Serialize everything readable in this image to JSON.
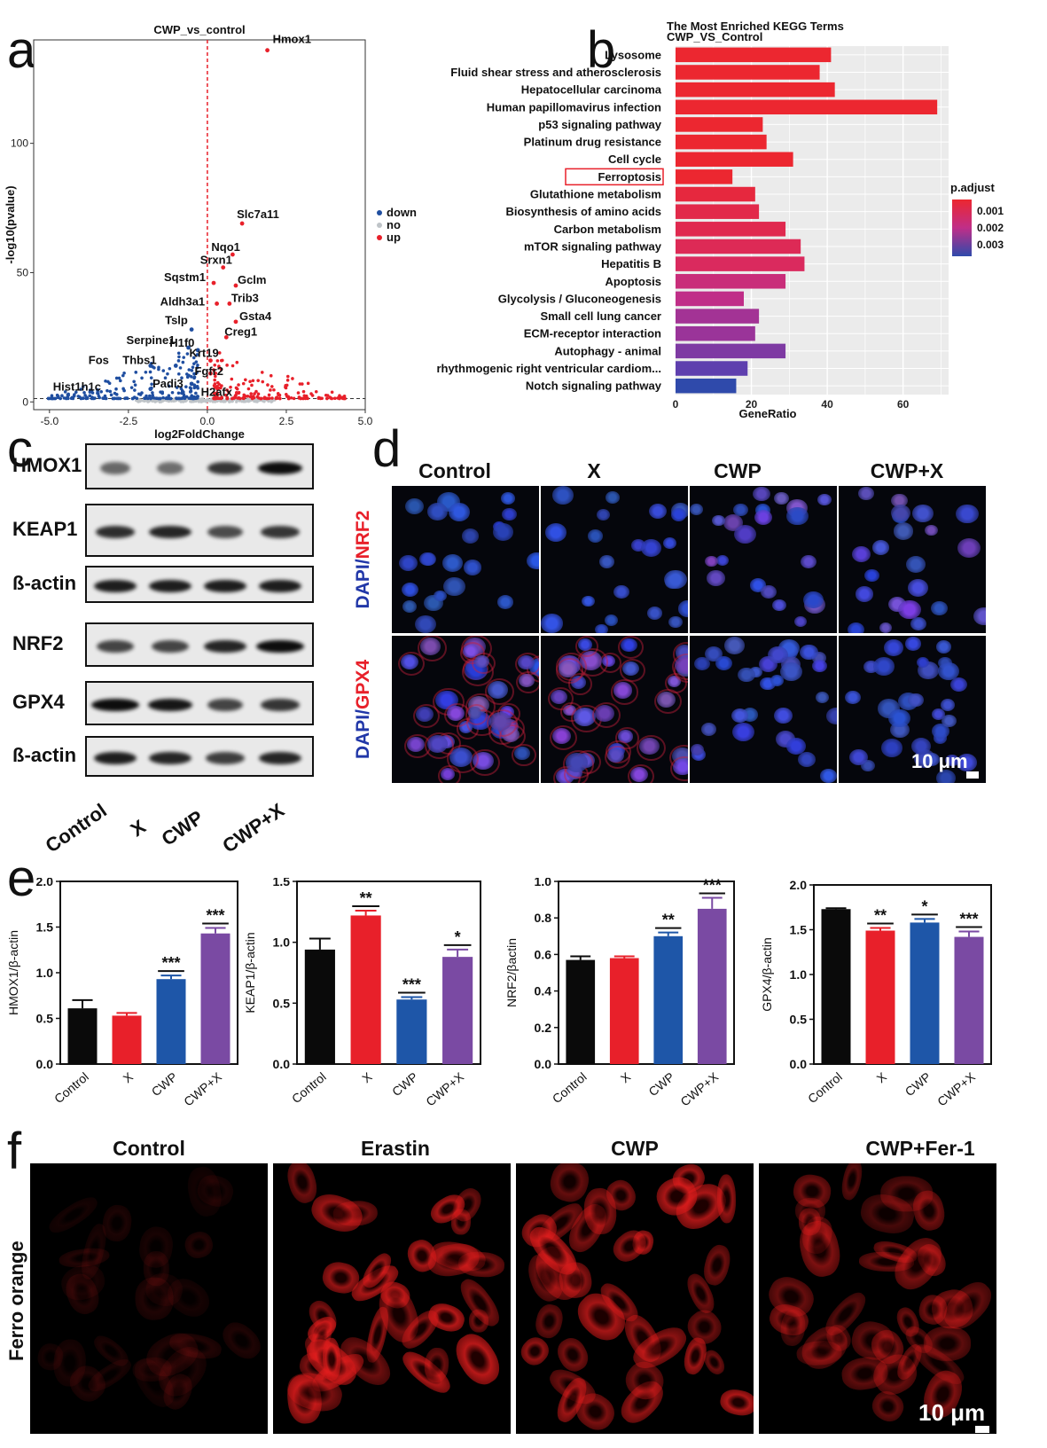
{
  "panels": {
    "a": "a",
    "b": "b",
    "c": "c",
    "d": "d",
    "e": "e",
    "f": "f"
  },
  "volcano": {
    "title": "CWP_vs_control",
    "xlabel": "log2FoldChange",
    "ylabel": "-log10(pvalue)",
    "xticks": [
      "-5.0",
      "-2.5",
      "0.0",
      "2.5",
      "5.0"
    ],
    "yticks": [
      "0",
      "50",
      "100"
    ],
    "legend": [
      "down",
      "no",
      "up"
    ],
    "genes": [
      {
        "name": "Hmox1",
        "x": 1.9,
        "y": 136
      },
      {
        "name": "Slc7a11",
        "x": 1.1,
        "y": 69
      },
      {
        "name": "Nqo1",
        "x": 0.8,
        "y": 57
      },
      {
        "name": "Srxn1",
        "x": 0.5,
        "y": 52
      },
      {
        "name": "Gclm",
        "x": 0.9,
        "y": 45
      },
      {
        "name": "Sqstm1",
        "x": 0.2,
        "y": 46
      },
      {
        "name": "Trib3",
        "x": 0.7,
        "y": 38
      },
      {
        "name": "Aldh3a1",
        "x": 0.3,
        "y": 38
      },
      {
        "name": "Gsta4",
        "x": 0.9,
        "y": 31
      },
      {
        "name": "Tslp",
        "x": -0.5,
        "y": 28
      },
      {
        "name": "Creg1",
        "x": 0.6,
        "y": 25
      },
      {
        "name": "Serpine1",
        "x": -0.6,
        "y": 21
      },
      {
        "name": "H1f0",
        "x": -0.3,
        "y": 20
      },
      {
        "name": "Krt19",
        "x": 0.1,
        "y": 16
      },
      {
        "name": "Fos",
        "x": -1.8,
        "y": 14
      },
      {
        "name": "Thbs1",
        "x": -1.0,
        "y": 14
      },
      {
        "name": "Fgfr2",
        "x": 0.1,
        "y": 11
      },
      {
        "name": "Padi3",
        "x": -0.5,
        "y": 7
      },
      {
        "name": "Hist1h1c",
        "x": -1.8,
        "y": 5
      },
      {
        "name": "H2afx",
        "x": 0.3,
        "y": 3
      }
    ]
  },
  "kegg": {
    "title": "The Most Enriched KEGG Terms",
    "subtitle": "CWP_VS_Control",
    "xlabel": "GeneRatio",
    "xticks": [
      "0",
      "20",
      "40",
      "60"
    ],
    "legend_title": "p.adjust",
    "legend_ticks": [
      "0.001",
      "0.002",
      "0.003"
    ],
    "highlight": "Ferroptosis",
    "terms": [
      {
        "name": "Lysosome",
        "value": 41,
        "color": "#ec2730"
      },
      {
        "name": "Fluid shear stress and atherosclerosis",
        "value": 38,
        "color": "#ec2730"
      },
      {
        "name": "Hepatocellular carcinoma",
        "value": 42,
        "color": "#ec2730"
      },
      {
        "name": "Human papillomavirus infection",
        "value": 69,
        "color": "#ec2730"
      },
      {
        "name": "p53 signaling pathway",
        "value": 23,
        "color": "#ec2730"
      },
      {
        "name": "Platinum drug resistance",
        "value": 24,
        "color": "#ec2730"
      },
      {
        "name": "Cell cycle",
        "value": 31,
        "color": "#ec2730"
      },
      {
        "name": "Ferroptosis",
        "value": 15,
        "color": "#ec2730"
      },
      {
        "name": "Glutathione metabolism",
        "value": 21,
        "color": "#e6283e"
      },
      {
        "name": "Biosynthesis of amino acids",
        "value": 22,
        "color": "#e2294a"
      },
      {
        "name": "Carbon metabolism",
        "value": 29,
        "color": "#e0294f"
      },
      {
        "name": "mTOR signaling pathway",
        "value": 33,
        "color": "#dd2a56"
      },
      {
        "name": "Hepatitis B",
        "value": 34,
        "color": "#da2a5e"
      },
      {
        "name": "Apoptosis",
        "value": 29,
        "color": "#c92d7a"
      },
      {
        "name": "Glycolysis / Gluconeogenesis",
        "value": 18,
        "color": "#c02e88"
      },
      {
        "name": "Small cell lung cancer",
        "value": 22,
        "color": "#a33395"
      },
      {
        "name": "ECM-receptor interaction",
        "value": 21,
        "color": "#9a3499"
      },
      {
        "name": "Autophagy - animal",
        "value": 29,
        "color": "#7e3aa3"
      },
      {
        "name": "rhythmogenic right ventricular cardiom...",
        "value": 19,
        "color": "#5e3fae"
      },
      {
        "name": "Notch signaling pathway",
        "value": 16,
        "color": "#2f4aab"
      }
    ]
  },
  "western": {
    "proteins": [
      "HMOX1",
      "KEAP1",
      "ß-actin",
      "NRF2",
      "GPX4",
      "ß-actin"
    ],
    "groups": [
      "Control",
      "X",
      "CWP",
      "CWP+X"
    ]
  },
  "if_panel": {
    "columns": [
      "Control",
      "X",
      "CWP",
      "CWP+X"
    ],
    "rows": [
      {
        "label_a": "DAPI/",
        "label_b": "NRF2"
      },
      {
        "label_a": "DAPI/",
        "label_b": "GPX4"
      }
    ],
    "scale": "10 μm"
  },
  "chart_data": [
    {
      "type": "bar",
      "categories": [
        "Control",
        "X",
        "CWP",
        "CWP+X"
      ],
      "values": [
        0.61,
        0.53,
        0.93,
        1.43
      ],
      "errors": [
        0.09,
        0.03,
        0.04,
        0.06
      ],
      "sig": [
        "",
        "",
        "***",
        "***"
      ],
      "ylabel": "HMOX1/β-actin",
      "ylim": [
        0,
        2.0
      ],
      "yticks": [
        "0.0",
        "0.5",
        "1.0",
        "1.5",
        "2.0"
      ],
      "colors": [
        "#0a0a0a",
        "#e8202a",
        "#1e56a8",
        "#7a4aa3"
      ]
    },
    {
      "type": "bar",
      "categories": [
        "Control",
        "X",
        "CWP",
        "CWP+X"
      ],
      "values": [
        0.94,
        1.22,
        0.53,
        0.88
      ],
      "errors": [
        0.09,
        0.04,
        0.02,
        0.06
      ],
      "sig": [
        "",
        "**",
        "***",
        "*"
      ],
      "ylabel": "KEAP1/β-actin",
      "ylim": [
        0,
        1.5
      ],
      "yticks": [
        "0.0",
        "0.5",
        "1.0",
        "1.5"
      ],
      "colors": [
        "#0a0a0a",
        "#e8202a",
        "#1e56a8",
        "#7a4aa3"
      ]
    },
    {
      "type": "bar",
      "categories": [
        "Control",
        "X",
        "CWP",
        "CWP+X"
      ],
      "values": [
        0.57,
        0.58,
        0.7,
        0.85
      ],
      "errors": [
        0.02,
        0.01,
        0.02,
        0.06
      ],
      "sig": [
        "",
        "",
        "**",
        "***"
      ],
      "ylabel": "NRF2/βactin",
      "ylim": [
        0,
        1.0
      ],
      "yticks": [
        "0.0",
        "0.2",
        "0.4",
        "0.6",
        "0.8",
        "1.0"
      ],
      "colors": [
        "#0a0a0a",
        "#e8202a",
        "#1e56a8",
        "#7a4aa3"
      ]
    },
    {
      "type": "bar",
      "categories": [
        "Control",
        "X",
        "CWP",
        "CWP+X"
      ],
      "values": [
        1.73,
        1.49,
        1.58,
        1.42
      ],
      "errors": [
        0.01,
        0.03,
        0.04,
        0.06
      ],
      "sig": [
        "",
        "**",
        "*",
        "***"
      ],
      "ylabel": "GPX4/β-actin",
      "ylim": [
        0,
        2.0
      ],
      "yticks": [
        "0.0",
        "0.5",
        "1.0",
        "1.5",
        "2.0"
      ],
      "colors": [
        "#0a0a0a",
        "#e8202a",
        "#1e56a8",
        "#7a4aa3"
      ]
    }
  ],
  "ferro": {
    "columns": [
      "Control",
      "Erastin",
      "CWP",
      "CWP+Fer-1"
    ],
    "row_label": "Ferro orange",
    "scale": "10 μm"
  }
}
